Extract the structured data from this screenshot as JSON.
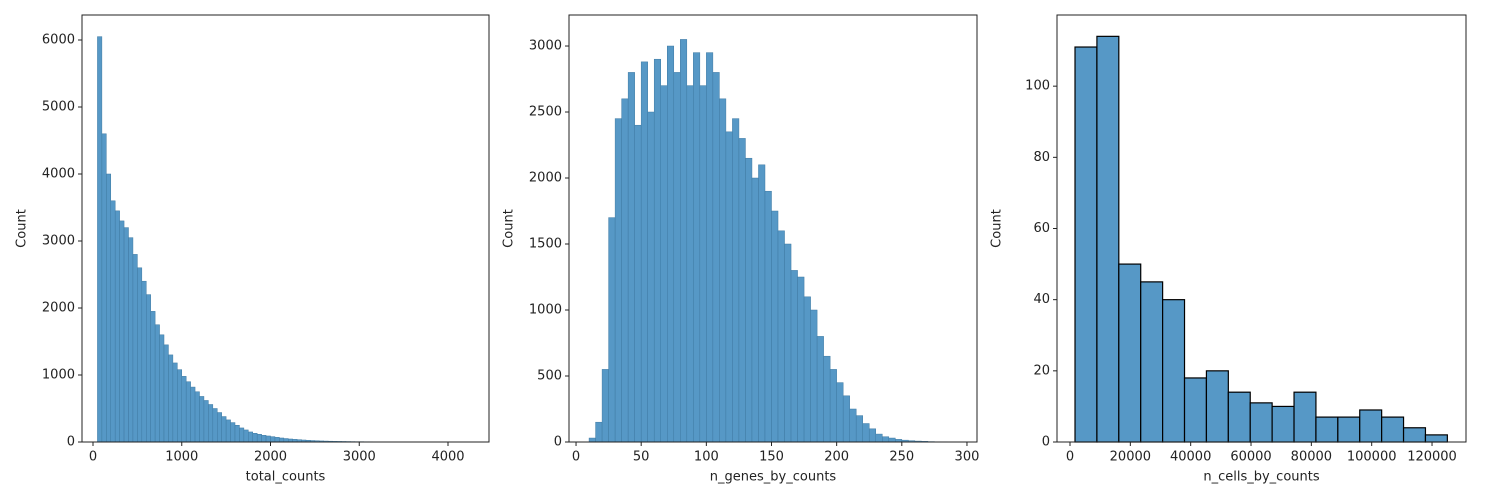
{
  "chart_data": [
    {
      "type": "histogram",
      "xlabel": "total_counts",
      "ylabel": "Count",
      "color": "#5698c6",
      "edgecolor": "#3f7aa3",
      "bins": [
        50,
        100,
        150,
        200,
        250,
        300,
        350,
        400,
        450,
        500,
        550,
        600,
        650,
        700,
        750,
        800,
        850,
        900,
        950,
        1000,
        1050,
        1100,
        1150,
        1200,
        1250,
        1300,
        1350,
        1400,
        1450,
        1500,
        1550,
        1600,
        1650,
        1700,
        1750,
        1800,
        1850,
        1900,
        1950,
        2000,
        2050,
        2100,
        2150,
        2200,
        2250,
        2300,
        2350,
        2400,
        2450,
        2500,
        2550,
        2600,
        2650,
        2700,
        2750,
        2800,
        2850,
        2900,
        2950,
        3000,
        3050,
        3100,
        3150,
        3200,
        3250,
        3300,
        3350,
        3400,
        3450,
        3500,
        3550,
        3600,
        3650,
        3700,
        3750,
        3800,
        3850,
        3900,
        3950,
        4000,
        4050,
        4100,
        4150,
        4200,
        4250
      ],
      "counts": [
        6050,
        4600,
        4000,
        3600,
        3450,
        3300,
        3200,
        3050,
        2800,
        2600,
        2400,
        2200,
        1950,
        1750,
        1600,
        1450,
        1300,
        1180,
        1080,
        980,
        900,
        820,
        750,
        680,
        620,
        560,
        500,
        440,
        380,
        330,
        290,
        250,
        210,
        180,
        150,
        130,
        115,
        100,
        90,
        80,
        70,
        60,
        52,
        45,
        40,
        35,
        30,
        26,
        22,
        19,
        16,
        14,
        12,
        10,
        9,
        8,
        7,
        6,
        5,
        5,
        4,
        4,
        3,
        3,
        2,
        2,
        2,
        1,
        1,
        1,
        1,
        1,
        1,
        0,
        0,
        1,
        0,
        0,
        0,
        0,
        0,
        0,
        0,
        1
      ],
      "xlim": [
        -124,
        4462
      ],
      "ylim": [
        0,
        6373
      ],
      "xticks": [
        0,
        1000,
        2000,
        3000,
        4000
      ],
      "yticks": [
        0,
        1000,
        2000,
        3000,
        4000,
        5000,
        6000
      ]
    },
    {
      "type": "histogram",
      "xlabel": "n_genes_by_counts",
      "ylabel": "Count",
      "color": "#5698c6",
      "edgecolor": "#3f7aa3",
      "bins": [
        5,
        10,
        15,
        20,
        25,
        30,
        35,
        40,
        45,
        50,
        55,
        60,
        65,
        70,
        75,
        80,
        85,
        90,
        95,
        100,
        105,
        110,
        115,
        120,
        125,
        130,
        135,
        140,
        145,
        150,
        155,
        160,
        165,
        170,
        175,
        180,
        185,
        190,
        195,
        200,
        205,
        210,
        215,
        220,
        225,
        230,
        235,
        240,
        245,
        250,
        255,
        260,
        265,
        270,
        275,
        280,
        285,
        290,
        295
      ],
      "counts": [
        0,
        30,
        150,
        550,
        1700,
        2450,
        2600,
        2800,
        2400,
        2880,
        2500,
        2900,
        2700,
        3000,
        2800,
        3050,
        2700,
        2950,
        2700,
        2950,
        2800,
        2600,
        2350,
        2450,
        2300,
        2150,
        2000,
        2100,
        1900,
        1750,
        1600,
        1500,
        1300,
        1250,
        1100,
        1000,
        800,
        650,
        550,
        450,
        350,
        250,
        200,
        140,
        100,
        60,
        40,
        30,
        20,
        14,
        10,
        7,
        5,
        3,
        2,
        2,
        1,
        1
      ],
      "xlim": [
        -5.4,
        307.7
      ],
      "ylim": [
        0,
        3235
      ],
      "xticks": [
        0,
        50,
        100,
        150,
        200,
        250,
        300
      ],
      "yticks": [
        0,
        500,
        1000,
        1500,
        2000,
        2500,
        3000
      ]
    },
    {
      "type": "histogram",
      "xlabel": "n_cells_by_counts",
      "ylabel": "Count",
      "color": "#5698c6",
      "edgecolor": "#000000",
      "bins": [
        1660,
        8920,
        16180,
        23440,
        30700,
        37960,
        45220,
        52480,
        59740,
        67000,
        74260,
        81520,
        88780,
        96040,
        103300,
        110560,
        117820,
        125080
      ],
      "counts": [
        111,
        114,
        50,
        45,
        40,
        18,
        20,
        14,
        11,
        10,
        14,
        7,
        7,
        9,
        7,
        4,
        2
      ],
      "xlim": [
        -4310,
        131260
      ],
      "ylim": [
        0,
        120
      ],
      "xticks": [
        0,
        20000,
        40000,
        60000,
        80000,
        100000,
        120000
      ],
      "yticks": [
        0,
        20,
        40,
        60,
        80,
        100
      ]
    }
  ]
}
